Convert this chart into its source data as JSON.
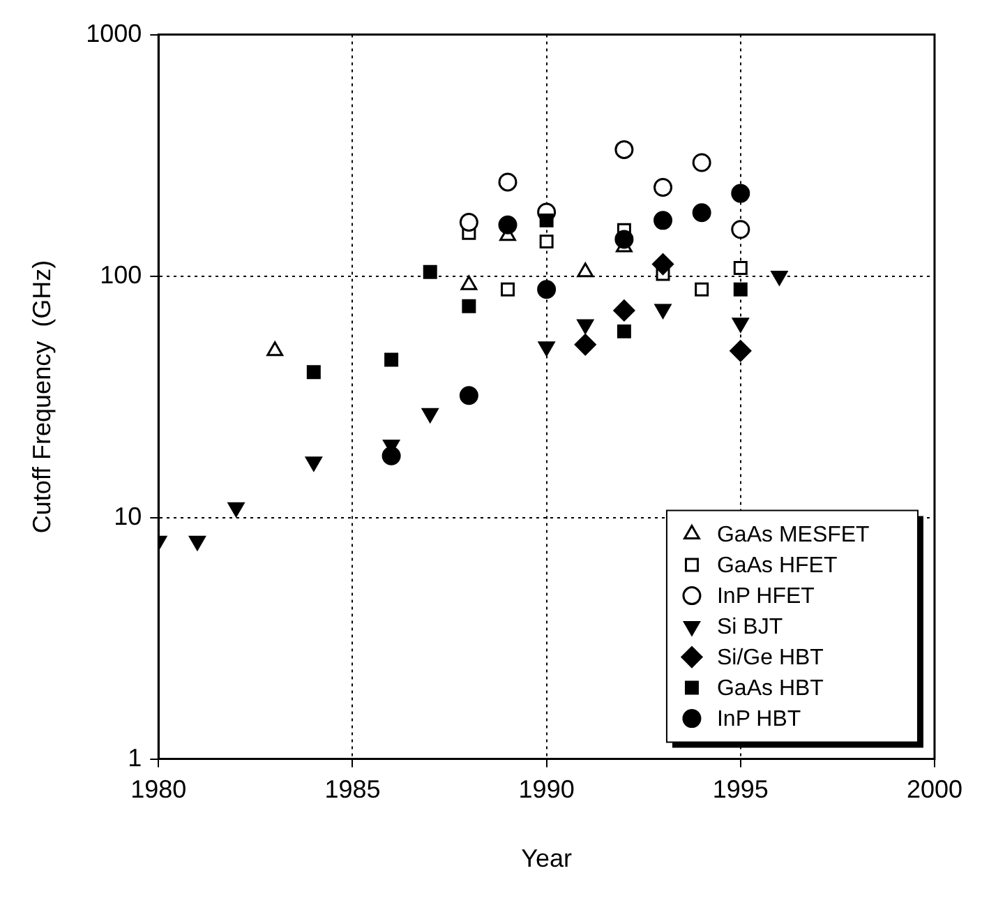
{
  "chart_data": {
    "type": "scatter",
    "xlabel": "Year",
    "ylabel": "Cutoff Frequency  (GHz)",
    "log": "y",
    "grid": true,
    "line_style": "dotted",
    "legend": "bottom right",
    "xlim": [
      1980,
      2000
    ],
    "xticks": [
      1980,
      1985,
      1990,
      1995,
      2000
    ],
    "ylim": [
      1,
      1000
    ],
    "yticks": [
      1,
      10,
      100,
      1000
    ],
    "series": [
      {
        "name": "GaAs MESFET",
        "color": "#000000",
        "marker": "triangle-open",
        "x": [
          1983,
          1988,
          1989,
          1991,
          1992
        ],
        "values": [
          49,
          92,
          147,
          104,
          132
        ]
      },
      {
        "name": "GaAs HFET",
        "color": "#000000",
        "marker": "square-open",
        "x": [
          1988,
          1989,
          1990,
          1992,
          1993,
          1994,
          1995
        ],
        "values": [
          151,
          88,
          139,
          155,
          102,
          88,
          108
        ]
      },
      {
        "name": "InP HFET",
        "color": "#000000",
        "marker": "circle-open",
        "x": [
          1988,
          1989,
          1990,
          1992,
          1993,
          1994,
          1995
        ],
        "values": [
          167,
          245,
          184,
          334,
          233,
          295,
          156
        ]
      },
      {
        "name": "Si BJT",
        "color": "#000000",
        "marker": "triangle-down",
        "x": [
          1980,
          1981,
          1982,
          1984,
          1986,
          1987,
          1990,
          1991,
          1993,
          1995,
          1996
        ],
        "values": [
          8,
          8,
          11,
          17,
          20,
          27,
          51,
          63,
          73,
          64,
          100
        ]
      },
      {
        "name": "Si/Ge HBT",
        "color": "#000000",
        "marker": "diamond",
        "x": [
          1991,
          1992,
          1993,
          1995
        ],
        "values": [
          52,
          72,
          112,
          49
        ]
      },
      {
        "name": "GaAs HBT",
        "color": "#000000",
        "marker": "square",
        "x": [
          1984,
          1986,
          1987,
          1988,
          1990,
          1992,
          1995
        ],
        "values": [
          40,
          45,
          104,
          75,
          170,
          59,
          88
        ]
      },
      {
        "name": "InP HBT",
        "color": "#000000",
        "marker": "circle",
        "x": [
          1986,
          1988,
          1989,
          1990,
          1992,
          1993,
          1994,
          1995
        ],
        "values": [
          18,
          32,
          163,
          88,
          142,
          170,
          183,
          220
        ]
      }
    ]
  }
}
